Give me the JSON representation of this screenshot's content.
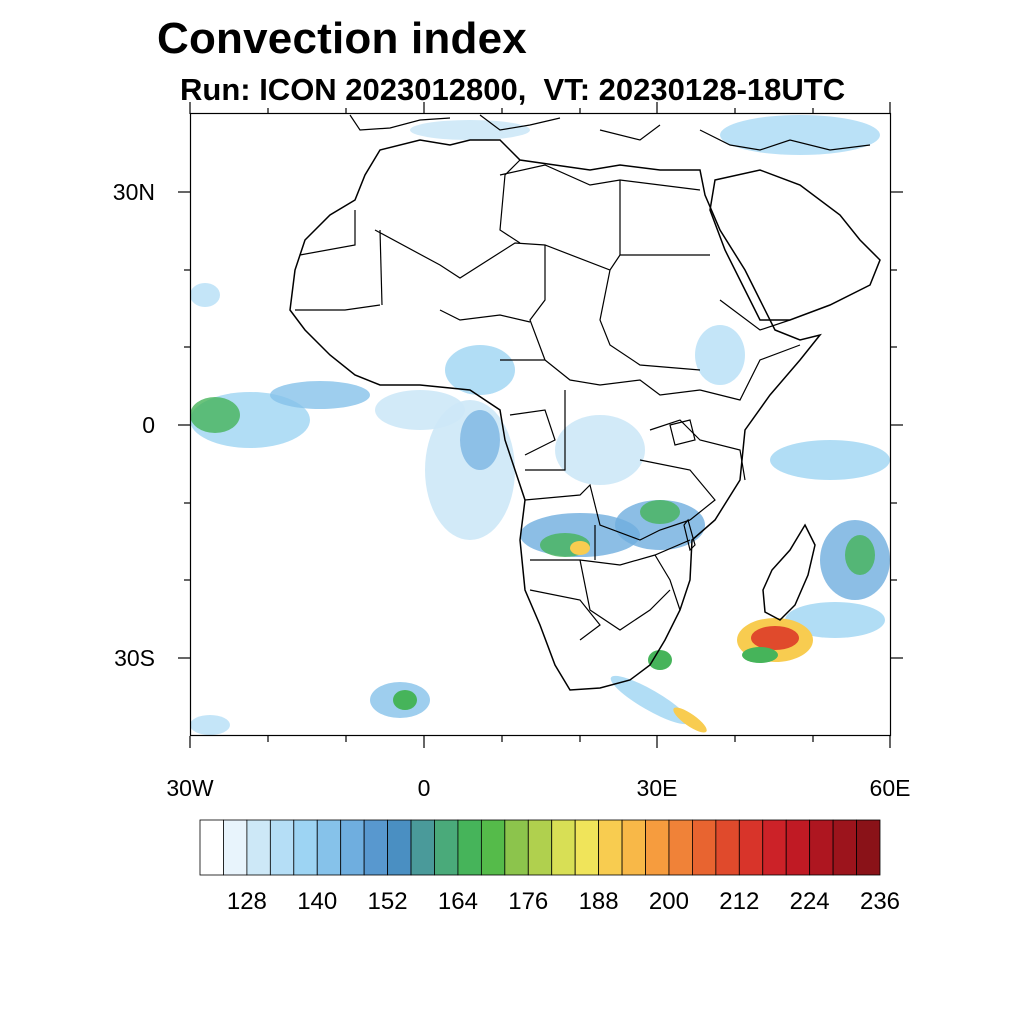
{
  "title": "Convection index",
  "subtitle": "Run: ICON 2023012800,  VT: 20230128-18UTC",
  "map": {
    "lon_range": [
      -30,
      60
    ],
    "lat_range": [
      -40,
      40
    ],
    "lat_labels": [
      "30N",
      "0",
      "30S"
    ],
    "lon_labels": [
      "30W",
      "0",
      "30E",
      "60E"
    ]
  },
  "colorbar": {
    "colors": [
      "#ffffff",
      "#e8f4fc",
      "#cde8f7",
      "#b5def6",
      "#9dd4f3",
      "#86c2ea",
      "#6faedf",
      "#5898cf",
      "#4a8fc2",
      "#4a9a9a",
      "#4aaa7a",
      "#46b45a",
      "#55bb4a",
      "#8cc44c",
      "#b0d04e",
      "#d8df55",
      "#f0e45a",
      "#f8cc50",
      "#f8b848",
      "#f69c3e",
      "#f08238",
      "#e86430",
      "#e04a2c",
      "#d8342a",
      "#cc2228",
      "#c01a24",
      "#ae1620",
      "#9c141c",
      "#8a1218"
    ],
    "labels": [
      "128",
      "140",
      "152",
      "164",
      "176",
      "188",
      "200",
      "212",
      "224",
      "236"
    ]
  }
}
